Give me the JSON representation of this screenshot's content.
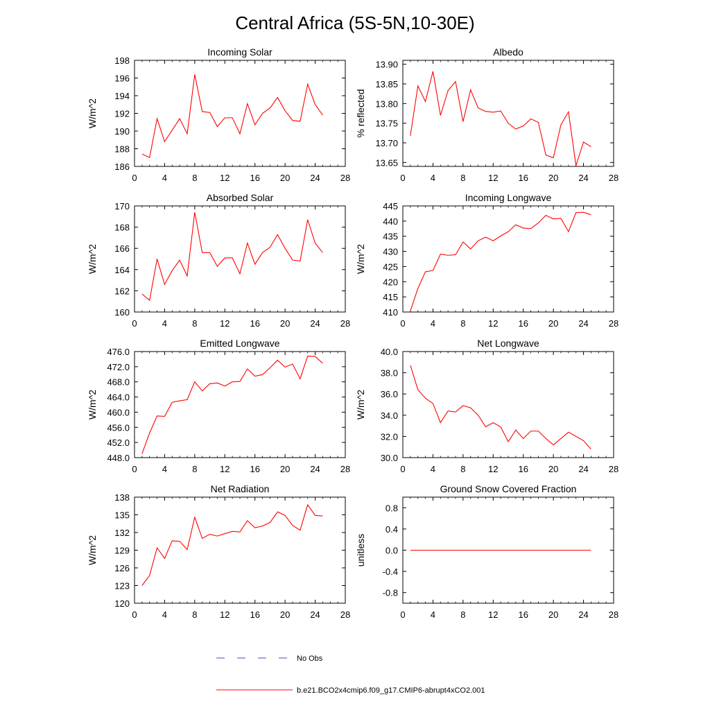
{
  "figure_title": "Central Africa (5S-5N,10-30E)",
  "legend": {
    "obs_label": "No Obs",
    "obs_color": "#3f48cc",
    "model_label": "b.e21.BCO2x4cmip6.f09_g17.CMIP6-abrupt4xCO2.001",
    "model_color": "#ff0000"
  },
  "chart_data": [
    {
      "type": "line",
      "title": "Incoming Solar",
      "ylabel": "W/m^2",
      "xlim": [
        0,
        28
      ],
      "xticks": [
        0,
        4,
        8,
        12,
        16,
        20,
        24,
        28
      ],
      "ylim": [
        186,
        198
      ],
      "yticks": [
        "186",
        "188",
        "190",
        "192",
        "194",
        "196",
        "198"
      ],
      "x": [
        1,
        2,
        3,
        4,
        5,
        6,
        7,
        8,
        9,
        10,
        11,
        12,
        13,
        14,
        15,
        16,
        17,
        18,
        19,
        20,
        21,
        22,
        23,
        24,
        25
      ],
      "series": [
        {
          "values": [
            187.4,
            187.0,
            191.4,
            188.8,
            190.1,
            191.4,
            189.7,
            196.4,
            192.2,
            192.1,
            190.5,
            191.5,
            191.5,
            189.7,
            193.1,
            190.7,
            192.0,
            192.6,
            193.8,
            192.3,
            191.2,
            191.1,
            195.3,
            193.0,
            191.8
          ]
        }
      ]
    },
    {
      "type": "line",
      "title": "Albedo",
      "ylabel": "% reflected",
      "xlim": [
        0,
        28
      ],
      "xticks": [
        0,
        4,
        8,
        12,
        16,
        20,
        24,
        28
      ],
      "ylim": [
        13.64,
        13.91
      ],
      "yticks": [
        "13.65",
        "13.70",
        "13.75",
        "13.80",
        "13.85",
        "13.90"
      ],
      "x": [
        1,
        2,
        3,
        4,
        5,
        6,
        7,
        8,
        9,
        10,
        11,
        12,
        13,
        14,
        15,
        16,
        17,
        18,
        19,
        20,
        21,
        22,
        23,
        24,
        25
      ],
      "series": [
        {
          "values": [
            13.718,
            13.845,
            13.805,
            13.882,
            13.77,
            13.833,
            13.856,
            13.754,
            13.835,
            13.789,
            13.78,
            13.778,
            13.781,
            13.75,
            13.735,
            13.743,
            13.761,
            13.752,
            13.669,
            13.662,
            13.746,
            13.779,
            13.642,
            13.702,
            13.69
          ]
        }
      ]
    },
    {
      "type": "line",
      "title": "Absorbed Solar",
      "ylabel": "W/m^2",
      "xlim": [
        0,
        28
      ],
      "xticks": [
        0,
        4,
        8,
        12,
        16,
        20,
        24,
        28
      ],
      "ylim": [
        160,
        170
      ],
      "yticks": [
        "160",
        "162",
        "164",
        "166",
        "168",
        "170"
      ],
      "x": [
        1,
        2,
        3,
        4,
        5,
        6,
        7,
        8,
        9,
        10,
        11,
        12,
        13,
        14,
        15,
        16,
        17,
        18,
        19,
        20,
        21,
        22,
        23,
        24,
        25
      ],
      "series": [
        {
          "values": [
            161.7,
            161.1,
            165.0,
            162.6,
            163.9,
            164.9,
            163.4,
            169.4,
            165.6,
            165.6,
            164.3,
            165.1,
            165.1,
            163.6,
            166.5,
            164.5,
            165.6,
            166.1,
            167.3,
            166.0,
            164.9,
            164.8,
            168.7,
            166.5,
            165.6
          ]
        }
      ]
    },
    {
      "type": "line",
      "title": "Incoming Longwave",
      "ylabel": "W/m^2",
      "xlim": [
        0,
        28
      ],
      "xticks": [
        0,
        4,
        8,
        12,
        16,
        20,
        24,
        28
      ],
      "ylim": [
        410,
        445
      ],
      "yticks": [
        "410",
        "415",
        "420",
        "425",
        "430",
        "435",
        "440",
        "445"
      ],
      "x": [
        1,
        2,
        3,
        4,
        5,
        6,
        7,
        8,
        9,
        10,
        11,
        12,
        13,
        14,
        15,
        16,
        17,
        18,
        19,
        20,
        21,
        22,
        23,
        24,
        25
      ],
      "series": [
        {
          "values": [
            410.3,
            417.8,
            423.3,
            423.7,
            429.1,
            428.7,
            428.9,
            433.1,
            430.8,
            433.5,
            434.7,
            433.5,
            435.1,
            436.5,
            438.8,
            437.7,
            437.5,
            439.4,
            441.9,
            440.7,
            440.9,
            436.5,
            442.8,
            442.9,
            442.1
          ]
        }
      ]
    },
    {
      "type": "line",
      "title": "Emitted Longwave",
      "ylabel": "W/m^2",
      "xlim": [
        0,
        28
      ],
      "xticks": [
        0,
        4,
        8,
        12,
        16,
        20,
        24,
        28
      ],
      "ylim": [
        448,
        476
      ],
      "yticks": [
        "448.0",
        "452.0",
        "456.0",
        "460.0",
        "464.0",
        "468.0",
        "472.0",
        "476.0"
      ],
      "x": [
        1,
        2,
        3,
        4,
        5,
        6,
        7,
        8,
        9,
        10,
        11,
        12,
        13,
        14,
        15,
        16,
        17,
        18,
        19,
        20,
        21,
        22,
        23,
        24,
        25
      ],
      "series": [
        {
          "values": [
            449.0,
            454.5,
            459.0,
            458.9,
            462.6,
            463.0,
            463.3,
            468.0,
            465.6,
            467.5,
            467.7,
            466.9,
            468.0,
            468.1,
            471.4,
            469.5,
            469.9,
            471.7,
            473.7,
            471.9,
            472.7,
            468.8,
            474.8,
            474.7,
            472.9
          ]
        }
      ]
    },
    {
      "type": "line",
      "title": "Net Longwave",
      "ylabel": "W/m^2",
      "xlim": [
        0,
        28
      ],
      "xticks": [
        0,
        4,
        8,
        12,
        16,
        20,
        24,
        28
      ],
      "ylim": [
        30,
        40
      ],
      "yticks": [
        "30.0",
        "32.0",
        "34.0",
        "36.0",
        "38.0",
        "40.0"
      ],
      "x": [
        1,
        2,
        3,
        4,
        5,
        6,
        7,
        8,
        9,
        10,
        11,
        12,
        13,
        14,
        15,
        16,
        17,
        18,
        19,
        20,
        21,
        22,
        23,
        24,
        25
      ],
      "series": [
        {
          "values": [
            38.7,
            36.4,
            35.6,
            35.1,
            33.3,
            34.4,
            34.3,
            34.9,
            34.7,
            34.0,
            32.9,
            33.3,
            32.9,
            31.5,
            32.6,
            31.8,
            32.5,
            32.5,
            31.8,
            31.2,
            31.8,
            32.4,
            32.0,
            31.6,
            30.8
          ]
        }
      ]
    },
    {
      "type": "line",
      "title": "Net Radiation",
      "ylabel": "W/m^2",
      "xlim": [
        0,
        28
      ],
      "xticks": [
        0,
        4,
        8,
        12,
        16,
        20,
        24,
        28
      ],
      "ylim": [
        120,
        138
      ],
      "yticks": [
        "120",
        "123",
        "126",
        "129",
        "132",
        "135",
        "138"
      ],
      "x": [
        1,
        2,
        3,
        4,
        5,
        6,
        7,
        8,
        9,
        10,
        11,
        12,
        13,
        14,
        15,
        16,
        17,
        18,
        19,
        20,
        21,
        22,
        23,
        24,
        25
      ],
      "series": [
        {
          "values": [
            123.0,
            124.7,
            129.4,
            127.6,
            130.6,
            130.5,
            129.1,
            134.6,
            131.0,
            131.7,
            131.4,
            131.8,
            132.2,
            132.1,
            134.0,
            132.8,
            133.1,
            133.7,
            135.5,
            134.9,
            133.2,
            132.4,
            136.7,
            134.9,
            134.8
          ]
        }
      ]
    },
    {
      "type": "line",
      "title": "Ground Snow Covered Fraction",
      "ylabel": "unitless",
      "xlim": [
        0,
        28
      ],
      "xticks": [
        0,
        4,
        8,
        12,
        16,
        20,
        24,
        28
      ],
      "ylim": [
        -1.0,
        1.0
      ],
      "yticks": [
        "-0.8",
        "-0.4",
        "0.0",
        "0.4",
        "0.8"
      ],
      "x": [
        1,
        2,
        3,
        4,
        5,
        6,
        7,
        8,
        9,
        10,
        11,
        12,
        13,
        14,
        15,
        16,
        17,
        18,
        19,
        20,
        21,
        22,
        23,
        24,
        25
      ],
      "series": [
        {
          "values": [
            0,
            0,
            0,
            0,
            0,
            0,
            0,
            0,
            0,
            0,
            0,
            0,
            0,
            0,
            0,
            0,
            0,
            0,
            0,
            0,
            0,
            0,
            0,
            0,
            0
          ]
        }
      ]
    }
  ]
}
